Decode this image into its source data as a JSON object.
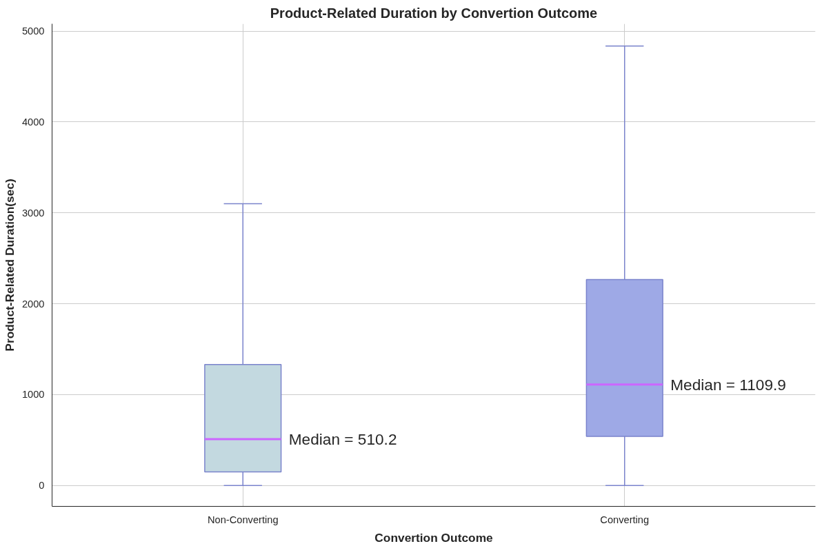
{
  "chart_data": {
    "type": "box",
    "title": "Product-Related Duration by Convertion Outcome",
    "xlabel": "Convertion Outcome",
    "ylabel": "Product-Related Duration(sec)",
    "categories": [
      "Non-Converting",
      "Converting"
    ],
    "boxes": [
      {
        "low": 0,
        "q1": 150,
        "median": 510.2,
        "q3": 1330,
        "high": 3100
      },
      {
        "low": 0,
        "q1": 540,
        "median": 1109.9,
        "q3": 2265,
        "high": 4835
      }
    ],
    "colors": [
      "#c3d9e0",
      "#9ea9e6"
    ],
    "ylim": [
      -230,
      5080
    ],
    "yticks": [
      0,
      1000,
      2000,
      3000,
      4000,
      5000
    ],
    "grid": true,
    "annotations": [
      {
        "text": "Median = 510.2",
        "x": "Non-Converting",
        "y": 510.2
      },
      {
        "text": "Median = 1109.9",
        "x": "Converting",
        "y": 1109.9
      }
    ]
  }
}
